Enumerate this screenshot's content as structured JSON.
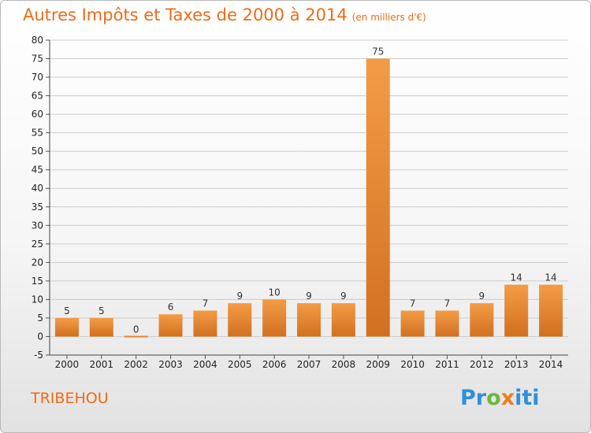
{
  "title": "Autres Impôts et Taxes de 2000 à 2014",
  "subtitle": "(en milliers d'€)",
  "commune": "TRIBEHOU",
  "logo": {
    "text": "Proxiti",
    "letters": [
      "P",
      "r",
      "o",
      "x",
      "i",
      "t",
      "i"
    ],
    "colors": [
      "#2f8fd8",
      "#2f8fd8",
      "#6cb83a",
      "#f07b1d",
      "#2f8fd8",
      "#2f8fd8",
      "#2f8fd8"
    ]
  },
  "colors": {
    "bar": "#f39c45",
    "bar_dark": "#d27020",
    "title": "#ee6b16",
    "grid": "#cccccc"
  },
  "chart_data": {
    "type": "bar",
    "categories": [
      "2000",
      "2001",
      "2002",
      "2003",
      "2004",
      "2005",
      "2006",
      "2007",
      "2008",
      "2009",
      "2010",
      "2011",
      "2012",
      "2013",
      "2014"
    ],
    "values": [
      5,
      5,
      0,
      6,
      7,
      9,
      10,
      9,
      9,
      75,
      7,
      7,
      9,
      14,
      14
    ],
    "title": "Autres Impôts et Taxes de 2000 à 2014",
    "ylabel": "",
    "xlabel": "",
    "ylim": [
      -5,
      80
    ],
    "yticks": [
      -5,
      0,
      5,
      10,
      15,
      20,
      25,
      30,
      35,
      40,
      45,
      50,
      55,
      60,
      65,
      70,
      75,
      80
    ],
    "grid": true
  }
}
